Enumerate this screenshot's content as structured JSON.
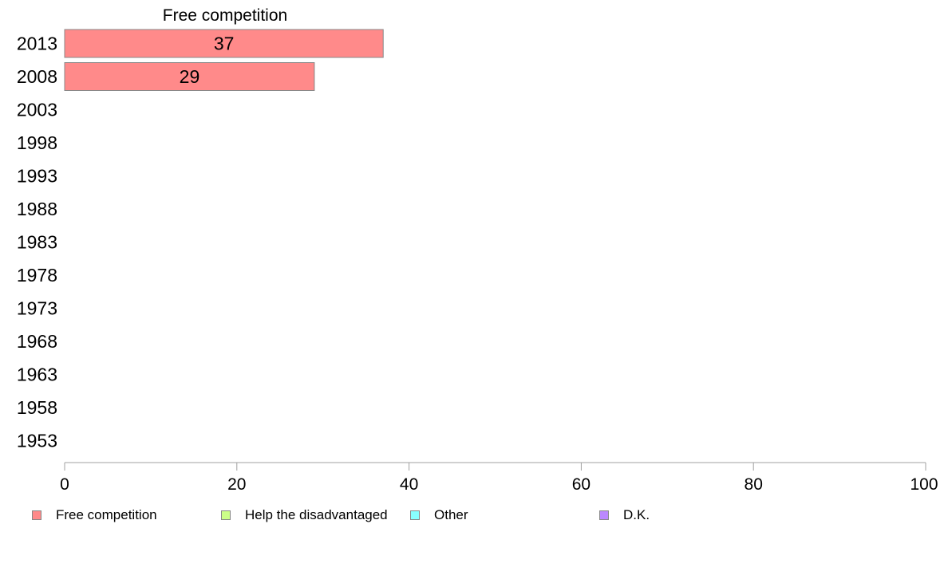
{
  "chart_data": {
    "type": "bar",
    "orientation": "horizontal",
    "title": "Free competition",
    "categories": [
      "2013",
      "2008",
      "2003",
      "1998",
      "1993",
      "1988",
      "1983",
      "1978",
      "1973",
      "1968",
      "1963",
      "1958",
      "1953"
    ],
    "series": [
      {
        "name": "Free competition",
        "color": "#ff8a8a",
        "values": [
          37,
          29,
          null,
          null,
          null,
          null,
          null,
          null,
          null,
          null,
          null,
          null,
          null
        ]
      }
    ],
    "xlim": [
      0,
      100
    ],
    "xticks": [
      0,
      20,
      40,
      60,
      80,
      100
    ],
    "grid": false,
    "legend": {
      "placement": "bottom",
      "entries": [
        {
          "label": "Free competition",
          "color": "#ff8a8a"
        },
        {
          "label": "Help the disadvantaged",
          "color": "#ccff88"
        },
        {
          "label": "Other",
          "color": "#88ffff"
        },
        {
          "label": "D.K.",
          "color": "#bb88ff"
        }
      ]
    }
  }
}
